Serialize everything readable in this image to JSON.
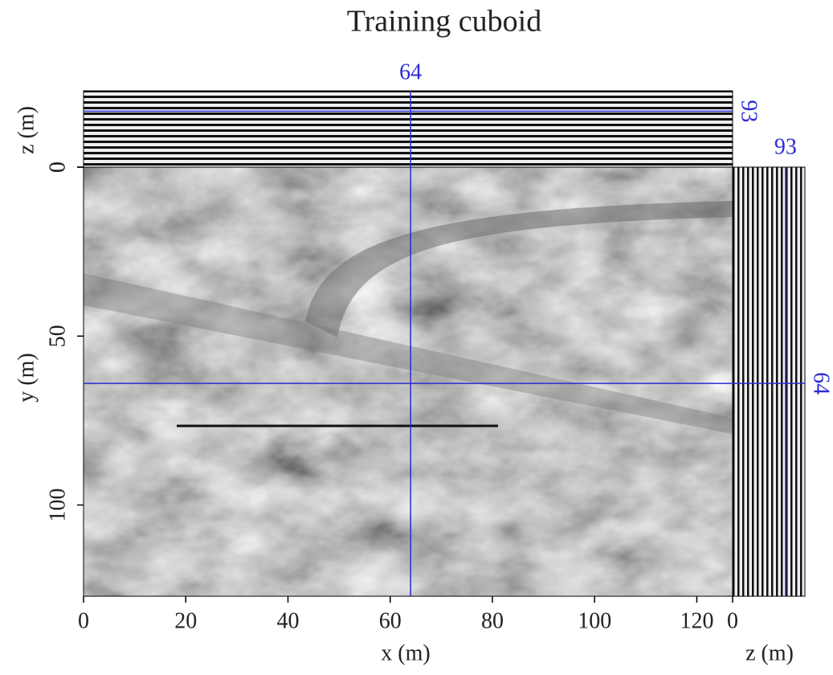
{
  "chart_data": {
    "type": "cube",
    "title": "Training cuboid",
    "x_label": "x (m)",
    "y_label": "y (m)",
    "z_label": "z (m)",
    "xlim": [
      0,
      127
    ],
    "ylim": [
      0,
      127
    ],
    "zlim": [
      0,
      127
    ],
    "xticks": [
      0,
      20,
      40,
      60,
      80,
      100,
      120
    ],
    "yticks": [
      0,
      50,
      100
    ],
    "zticks": [
      0
    ],
    "slice": {
      "x": 64,
      "y": 64,
      "z": 93
    },
    "line_color": "#2b2bd6"
  }
}
